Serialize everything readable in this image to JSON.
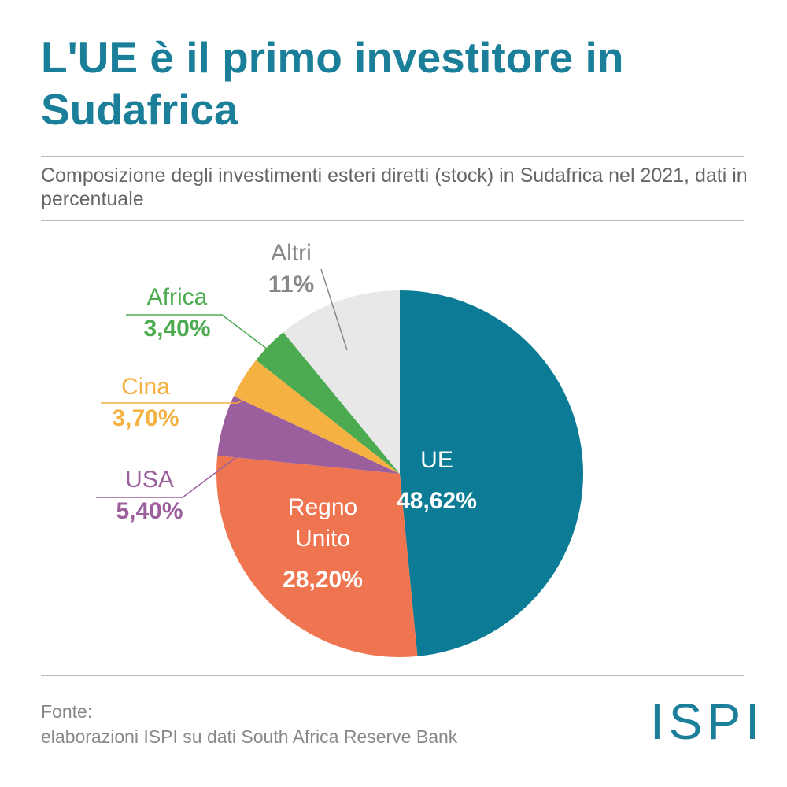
{
  "chart_data": {
    "type": "pie",
    "title": "L'UE è il primo investitore in Sudafrica",
    "subtitle": "Composizione degli investimenti esteri diretti (stock) in Sudafrica nel 2021, dati in percentuale",
    "categories": [
      "UE",
      "Regno Unito",
      "USA",
      "Cina",
      "Africa",
      "Altri"
    ],
    "values": [
      48.62,
      28.2,
      5.4,
      3.7,
      3.4,
      11
    ],
    "value_labels": [
      "48,62%",
      "28,20%",
      "5,40%",
      "3,70%",
      "3,40%",
      "11%"
    ],
    "colors": [
      "#0b7b96",
      "#ef7550",
      "#9c5f9e",
      "#f5b142",
      "#4cab50",
      "#e8e8e8"
    ]
  },
  "footer": {
    "source_label": "Fonte:",
    "source": "elaborazioni ISPI su dati South Africa Reserve Bank",
    "logo": "ISPI"
  }
}
